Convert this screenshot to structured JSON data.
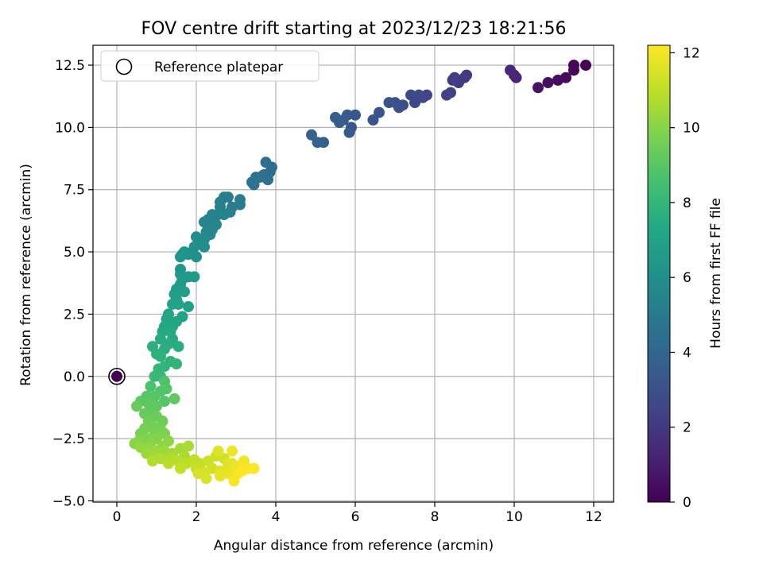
{
  "chart_data": {
    "type": "scatter",
    "title": "FOV centre drift starting at 2023/12/23 18:21:56",
    "xlabel": "Angular distance from reference (arcmin)",
    "ylabel": "Rotation from reference (arcmin)",
    "xlim": [
      -0.6,
      12.5
    ],
    "ylim": [
      -5.05,
      13.3
    ],
    "xticks": [
      0,
      2,
      4,
      6,
      8,
      10,
      12
    ],
    "xtick_labels": [
      "0",
      "2",
      "4",
      "6",
      "8",
      "10",
      "12"
    ],
    "yticks": [
      -5.0,
      -2.5,
      0.0,
      2.5,
      5.0,
      7.5,
      10.0,
      12.5
    ],
    "ytick_labels": [
      "−5.0",
      "−2.5",
      "0.0",
      "2.5",
      "5.0",
      "7.5",
      "10.0",
      "12.5"
    ],
    "grid": true,
    "legend": {
      "position": "top-left",
      "entries": [
        "Reference platepar"
      ]
    },
    "reference_point": {
      "x": 0,
      "y": 0,
      "label": "Reference platepar"
    },
    "colorbar": {
      "label": "Hours from first FF file",
      "colormap": "viridis",
      "range": [
        0,
        12.2
      ],
      "ticks": [
        0,
        2,
        4,
        6,
        8,
        10,
        12
      ],
      "tick_labels": [
        "0",
        "2",
        "4",
        "6",
        "8",
        "10",
        "12"
      ]
    },
    "series": [
      {
        "points": [
          [
            11.8,
            12.5,
            0.0
          ],
          [
            11.5,
            12.5,
            0.1
          ],
          [
            11.5,
            12.3,
            0.2
          ],
          [
            11.3,
            12.0,
            0.3
          ],
          [
            11.1,
            11.9,
            0.4
          ],
          [
            10.85,
            11.8,
            0.5
          ],
          [
            10.6,
            11.6,
            0.6
          ],
          [
            10.0,
            12.1,
            1.2
          ],
          [
            10.05,
            12.0,
            1.3
          ],
          [
            9.9,
            12.3,
            1.4
          ],
          [
            8.8,
            12.1,
            2.0
          ],
          [
            8.75,
            12.0,
            2.05
          ],
          [
            8.6,
            11.8,
            2.1
          ],
          [
            8.5,
            12.0,
            2.15
          ],
          [
            8.45,
            11.9,
            2.2
          ],
          [
            8.4,
            11.4,
            2.3
          ],
          [
            8.3,
            11.3,
            2.4
          ],
          [
            7.8,
            11.3,
            2.5
          ],
          [
            7.7,
            11.2,
            2.55
          ],
          [
            7.6,
            11.3,
            2.6
          ],
          [
            7.5,
            11.0,
            2.65
          ],
          [
            7.4,
            11.3,
            2.7
          ],
          [
            7.2,
            10.9,
            2.9
          ],
          [
            7.1,
            10.8,
            2.95
          ],
          [
            7.0,
            11.0,
            3.0
          ],
          [
            6.85,
            11.0,
            3.05
          ],
          [
            6.6,
            10.6,
            3.1
          ],
          [
            6.45,
            10.3,
            3.2
          ],
          [
            6.0,
            10.5,
            3.3
          ],
          [
            5.9,
            10.0,
            3.35
          ],
          [
            5.85,
            9.8,
            3.4
          ],
          [
            5.8,
            10.5,
            3.45
          ],
          [
            5.7,
            10.3,
            3.5
          ],
          [
            5.6,
            10.2,
            3.55
          ],
          [
            5.5,
            10.4,
            3.6
          ],
          [
            5.2,
            9.4,
            3.7
          ],
          [
            5.05,
            9.4,
            3.75
          ],
          [
            4.9,
            9.7,
            3.8
          ],
          [
            3.9,
            8.4,
            4.3
          ],
          [
            3.85,
            8.2,
            4.35
          ],
          [
            3.75,
            8.6,
            4.4
          ],
          [
            3.8,
            7.9,
            4.45
          ],
          [
            3.7,
            8.1,
            4.5
          ],
          [
            3.6,
            8.0,
            4.55
          ],
          [
            3.5,
            8.0,
            4.6
          ],
          [
            3.45,
            7.7,
            4.65
          ],
          [
            3.4,
            7.8,
            4.7
          ],
          [
            3.1,
            7.1,
            5.0
          ],
          [
            3.1,
            6.9,
            5.02
          ],
          [
            2.9,
            6.8,
            5.05
          ],
          [
            2.85,
            6.6,
            5.1
          ],
          [
            2.8,
            7.2,
            5.12
          ],
          [
            2.7,
            7.2,
            5.15
          ],
          [
            2.6,
            7.0,
            5.18
          ],
          [
            2.6,
            6.8,
            5.2
          ],
          [
            2.55,
            6.5,
            5.25
          ],
          [
            2.45,
            6.3,
            5.3
          ],
          [
            2.4,
            6.5,
            5.35
          ],
          [
            2.3,
            6.3,
            5.4
          ],
          [
            2.2,
            6.2,
            5.45
          ],
          [
            2.7,
            6.5,
            5.5
          ],
          [
            2.5,
            6.1,
            5.55
          ],
          [
            2.4,
            5.9,
            5.6
          ],
          [
            2.35,
            5.7,
            5.65
          ],
          [
            2.25,
            5.8,
            5.7
          ],
          [
            2.2,
            5.5,
            5.75
          ],
          [
            2.1,
            5.5,
            5.8
          ],
          [
            2.0,
            5.6,
            5.85
          ],
          [
            2.05,
            5.3,
            5.9
          ],
          [
            2.2,
            5.2,
            5.95
          ],
          [
            1.95,
            5.2,
            6.0
          ],
          [
            1.9,
            5.0,
            6.05
          ],
          [
            2.0,
            4.8,
            6.1
          ],
          [
            1.8,
            4.9,
            6.15
          ],
          [
            1.7,
            5.0,
            6.2
          ],
          [
            1.6,
            4.8,
            6.25
          ],
          [
            1.65,
            4.9,
            6.3
          ],
          [
            1.6,
            4.3,
            6.4
          ],
          [
            1.6,
            4.1,
            6.45
          ],
          [
            1.65,
            3.9,
            6.5
          ],
          [
            1.8,
            4.0,
            6.55
          ],
          [
            1.95,
            4.0,
            6.6
          ],
          [
            1.6,
            3.7,
            6.65
          ],
          [
            1.5,
            3.5,
            6.7
          ],
          [
            1.45,
            3.3,
            6.75
          ],
          [
            1.7,
            3.4,
            6.8
          ],
          [
            1.5,
            3.1,
            6.85
          ],
          [
            1.8,
            2.8,
            6.9
          ],
          [
            1.55,
            2.9,
            6.95
          ],
          [
            1.4,
            2.9,
            7.0
          ],
          [
            1.65,
            2.4,
            7.05
          ],
          [
            1.3,
            2.5,
            7.1
          ],
          [
            1.5,
            2.2,
            7.15
          ],
          [
            1.25,
            2.3,
            7.2
          ],
          [
            1.4,
            2.0,
            7.25
          ],
          [
            1.2,
            2.0,
            7.3
          ],
          [
            1.35,
            1.8,
            7.35
          ],
          [
            1.15,
            1.8,
            7.4
          ],
          [
            1.4,
            1.5,
            7.45
          ],
          [
            1.1,
            1.5,
            7.5
          ],
          [
            1.3,
            1.3,
            7.55
          ],
          [
            1.55,
            1.2,
            7.6
          ],
          [
            1.2,
            1.1,
            7.65
          ],
          [
            0.9,
            1.2,
            7.7
          ],
          [
            1.0,
            0.9,
            7.75
          ],
          [
            1.1,
            0.8,
            7.8
          ],
          [
            1.35,
            0.6,
            7.85
          ],
          [
            1.5,
            0.5,
            7.9
          ],
          [
            1.2,
            0.4,
            7.95
          ],
          [
            1.05,
            0.3,
            8.0
          ],
          [
            1.1,
            0.0,
            8.05
          ],
          [
            0.95,
            0.0,
            8.1
          ],
          [
            0.85,
            -0.4,
            8.7
          ],
          [
            1.2,
            -0.2,
            8.75
          ],
          [
            1.1,
            -0.6,
            8.8
          ],
          [
            1.25,
            -0.5,
            8.85
          ],
          [
            1.2,
            -1.0,
            8.9
          ],
          [
            0.95,
            -0.8,
            8.95
          ],
          [
            0.75,
            -0.8,
            9.0
          ],
          [
            0.6,
            -1.0,
            9.05
          ],
          [
            0.8,
            -1.1,
            9.1
          ],
          [
            1.0,
            -1.2,
            9.15
          ],
          [
            1.45,
            -0.9,
            9.2
          ],
          [
            0.9,
            -1.4,
            9.25
          ],
          [
            0.7,
            -1.5,
            9.3
          ],
          [
            0.5,
            -1.2,
            9.35
          ],
          [
            1.0,
            -1.6,
            9.4
          ],
          [
            0.8,
            -1.8,
            9.45
          ],
          [
            1.15,
            -1.8,
            9.5
          ],
          [
            0.9,
            -2.0,
            9.55
          ],
          [
            1.1,
            -2.1,
            9.6
          ],
          [
            0.7,
            -2.1,
            9.65
          ],
          [
            0.6,
            -2.3,
            9.7
          ],
          [
            0.95,
            -2.3,
            9.75
          ],
          [
            1.2,
            -2.3,
            9.8
          ],
          [
            0.75,
            -2.5,
            9.85
          ],
          [
            1.0,
            -2.5,
            9.9
          ],
          [
            0.55,
            -2.6,
            9.95
          ],
          [
            0.45,
            -2.7,
            10.0
          ],
          [
            0.85,
            -2.7,
            10.05
          ],
          [
            1.3,
            -2.6,
            10.1
          ],
          [
            1.15,
            -2.8,
            10.15
          ],
          [
            0.6,
            -2.85,
            10.2
          ],
          [
            0.8,
            -2.9,
            10.25
          ],
          [
            1.0,
            -3.0,
            10.3
          ],
          [
            0.75,
            -3.1,
            10.35
          ],
          [
            1.2,
            -3.0,
            10.4
          ],
          [
            0.95,
            -3.2,
            10.45
          ],
          [
            1.4,
            -3.1,
            10.5
          ],
          [
            1.6,
            -2.9,
            10.55
          ],
          [
            1.8,
            -2.8,
            10.6
          ],
          [
            1.7,
            -3.2,
            10.65
          ],
          [
            1.1,
            -3.3,
            10.7
          ],
          [
            1.35,
            -3.3,
            10.75
          ],
          [
            0.9,
            -3.4,
            10.8
          ],
          [
            1.55,
            -3.4,
            10.85
          ],
          [
            1.3,
            -3.5,
            10.9
          ],
          [
            1.75,
            -3.5,
            10.95
          ],
          [
            1.95,
            -3.35,
            11.0
          ],
          [
            2.1,
            -3.5,
            11.05
          ],
          [
            1.6,
            -3.7,
            11.1
          ],
          [
            2.0,
            -3.7,
            11.15
          ],
          [
            2.3,
            -3.4,
            11.2
          ],
          [
            2.5,
            -3.2,
            11.25
          ],
          [
            2.7,
            -3.3,
            11.3
          ],
          [
            2.4,
            -3.7,
            11.35
          ],
          [
            2.2,
            -3.85,
            11.4
          ],
          [
            2.05,
            -3.9,
            11.45
          ],
          [
            2.25,
            -4.1,
            11.5
          ],
          [
            2.6,
            -3.8,
            11.55
          ],
          [
            2.8,
            -3.5,
            11.6
          ],
          [
            2.55,
            -3.0,
            11.65
          ],
          [
            2.9,
            -3.5,
            11.7
          ],
          [
            2.8,
            -3.9,
            11.75
          ],
          [
            2.6,
            -4.0,
            11.8
          ],
          [
            3.0,
            -3.6,
            11.85
          ],
          [
            2.9,
            -3.0,
            11.9
          ],
          [
            3.2,
            -3.4,
            11.95
          ],
          [
            3.05,
            -3.9,
            12.0
          ],
          [
            3.3,
            -3.7,
            12.05
          ],
          [
            2.95,
            -4.2,
            12.1
          ],
          [
            3.45,
            -3.7,
            12.15
          ],
          [
            3.15,
            -3.8,
            12.2
          ]
        ]
      }
    ]
  }
}
